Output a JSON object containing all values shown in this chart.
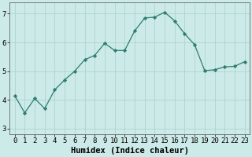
{
  "x": [
    0,
    1,
    2,
    3,
    4,
    5,
    6,
    7,
    8,
    9,
    10,
    11,
    12,
    13,
    14,
    15,
    16,
    17,
    18,
    19,
    20,
    21,
    22,
    23
  ],
  "y": [
    4.15,
    3.55,
    4.05,
    3.7,
    4.35,
    4.7,
    5.0,
    5.4,
    5.55,
    5.97,
    5.72,
    5.72,
    6.4,
    6.85,
    6.88,
    7.05,
    6.75,
    6.3,
    5.92,
    5.02,
    5.05,
    5.15,
    5.17,
    5.33
  ],
  "line_color": "#2e7d6e",
  "marker": "D",
  "marker_size": 2.2,
  "bg_color": "#cceae7",
  "grid_color": "#aacfcc",
  "xlabel": "Humidex (Indice chaleur)",
  "ylim": [
    2.8,
    7.4
  ],
  "xlim": [
    -0.5,
    23.5
  ],
  "yticks": [
    3,
    4,
    5,
    6,
    7
  ],
  "xticks": [
    0,
    1,
    2,
    3,
    4,
    5,
    6,
    7,
    8,
    9,
    10,
    11,
    12,
    13,
    14,
    15,
    16,
    17,
    18,
    19,
    20,
    21,
    22,
    23
  ],
  "xlabel_fontsize": 7.5,
  "tick_fontsize": 6.5
}
